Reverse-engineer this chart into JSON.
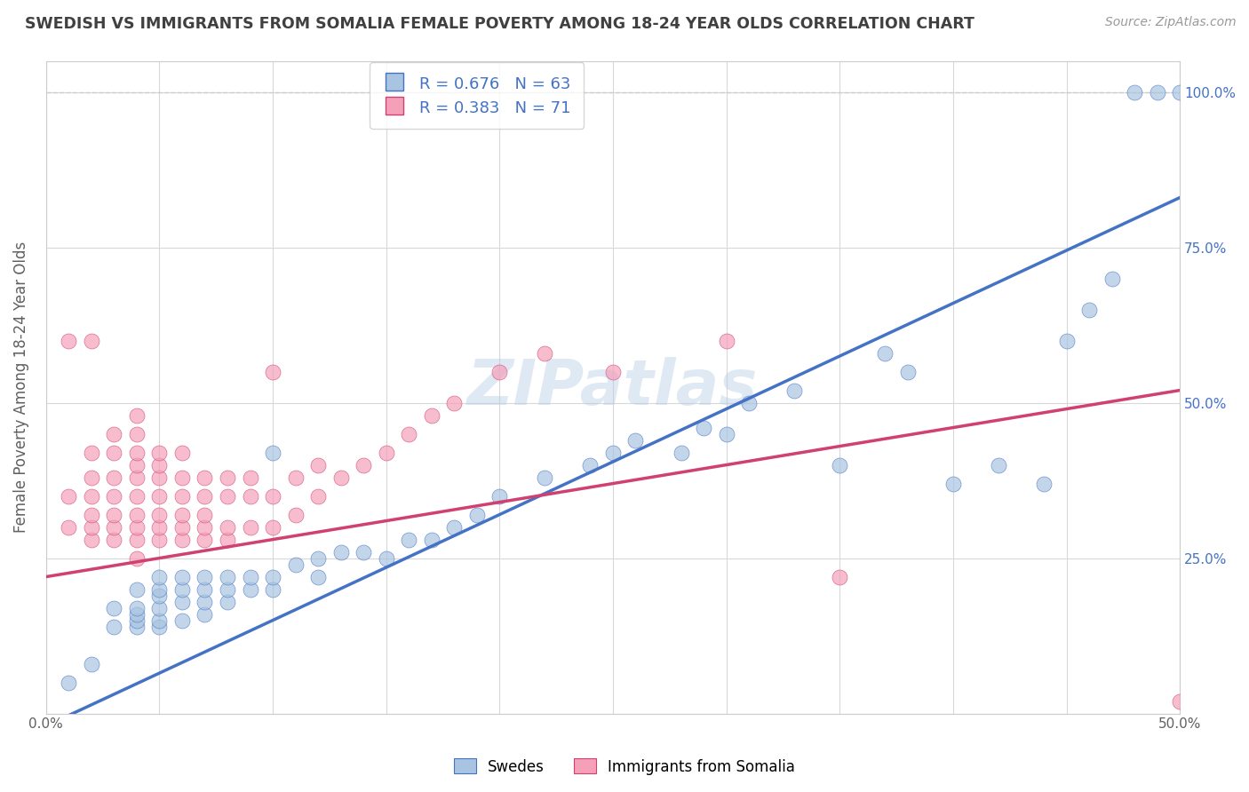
{
  "title": "SWEDISH VS IMMIGRANTS FROM SOMALIA FEMALE POVERTY AMONG 18-24 YEAR OLDS CORRELATION CHART",
  "source": "Source: ZipAtlas.com",
  "ylabel": "Female Poverty Among 18-24 Year Olds",
  "xlim": [
    0.0,
    0.5
  ],
  "ylim": [
    0.0,
    1.05
  ],
  "blue_R": 0.676,
  "blue_N": 63,
  "pink_R": 0.383,
  "pink_N": 71,
  "blue_color": "#a8c4e0",
  "blue_line_color": "#4472c4",
  "pink_color": "#f4a0b8",
  "pink_line_color": "#d04070",
  "legend_label_blue": "Swedes",
  "legend_label_pink": "Immigrants from Somalia",
  "watermark": "ZIPatlas",
  "background_color": "#ffffff",
  "grid_color": "#d8d8d8",
  "title_color": "#404040",
  "label_color": "#606060",
  "blue_x": [
    0.01,
    0.02,
    0.03,
    0.03,
    0.04,
    0.04,
    0.04,
    0.04,
    0.04,
    0.05,
    0.05,
    0.05,
    0.05,
    0.05,
    0.05,
    0.06,
    0.06,
    0.06,
    0.06,
    0.07,
    0.07,
    0.07,
    0.07,
    0.08,
    0.08,
    0.08,
    0.09,
    0.09,
    0.1,
    0.1,
    0.1,
    0.11,
    0.12,
    0.12,
    0.13,
    0.14,
    0.15,
    0.16,
    0.17,
    0.18,
    0.19,
    0.2,
    0.22,
    0.24,
    0.25,
    0.26,
    0.28,
    0.29,
    0.3,
    0.31,
    0.33,
    0.35,
    0.37,
    0.38,
    0.4,
    0.42,
    0.44,
    0.45,
    0.46,
    0.47,
    0.48,
    0.49,
    0.5
  ],
  "blue_y": [
    0.05,
    0.08,
    0.14,
    0.17,
    0.14,
    0.15,
    0.16,
    0.17,
    0.2,
    0.14,
    0.15,
    0.17,
    0.19,
    0.2,
    0.22,
    0.15,
    0.18,
    0.2,
    0.22,
    0.16,
    0.18,
    0.2,
    0.22,
    0.18,
    0.2,
    0.22,
    0.2,
    0.22,
    0.2,
    0.22,
    0.42,
    0.24,
    0.22,
    0.25,
    0.26,
    0.26,
    0.25,
    0.28,
    0.28,
    0.3,
    0.32,
    0.35,
    0.38,
    0.4,
    0.42,
    0.44,
    0.42,
    0.46,
    0.45,
    0.5,
    0.52,
    0.4,
    0.58,
    0.55,
    0.37,
    0.4,
    0.37,
    0.6,
    0.65,
    0.7,
    1.0,
    1.0,
    1.0
  ],
  "pink_x": [
    0.01,
    0.01,
    0.01,
    0.02,
    0.02,
    0.02,
    0.02,
    0.02,
    0.02,
    0.02,
    0.03,
    0.03,
    0.03,
    0.03,
    0.03,
    0.03,
    0.03,
    0.04,
    0.04,
    0.04,
    0.04,
    0.04,
    0.04,
    0.04,
    0.04,
    0.04,
    0.04,
    0.05,
    0.05,
    0.05,
    0.05,
    0.05,
    0.05,
    0.05,
    0.06,
    0.06,
    0.06,
    0.06,
    0.06,
    0.06,
    0.07,
    0.07,
    0.07,
    0.07,
    0.07,
    0.08,
    0.08,
    0.08,
    0.08,
    0.09,
    0.09,
    0.09,
    0.1,
    0.1,
    0.1,
    0.11,
    0.11,
    0.12,
    0.12,
    0.13,
    0.14,
    0.15,
    0.16,
    0.17,
    0.18,
    0.2,
    0.22,
    0.25,
    0.3,
    0.35,
    0.5
  ],
  "pink_y": [
    0.3,
    0.35,
    0.6,
    0.28,
    0.3,
    0.32,
    0.35,
    0.38,
    0.42,
    0.6,
    0.28,
    0.3,
    0.32,
    0.35,
    0.38,
    0.42,
    0.45,
    0.25,
    0.28,
    0.3,
    0.32,
    0.35,
    0.38,
    0.4,
    0.42,
    0.45,
    0.48,
    0.28,
    0.3,
    0.32,
    0.35,
    0.38,
    0.4,
    0.42,
    0.28,
    0.3,
    0.32,
    0.35,
    0.38,
    0.42,
    0.28,
    0.3,
    0.32,
    0.35,
    0.38,
    0.28,
    0.3,
    0.35,
    0.38,
    0.3,
    0.35,
    0.38,
    0.3,
    0.35,
    0.55,
    0.32,
    0.38,
    0.35,
    0.4,
    0.38,
    0.4,
    0.42,
    0.45,
    0.48,
    0.5,
    0.55,
    0.58,
    0.55,
    0.6,
    0.22,
    0.02
  ]
}
